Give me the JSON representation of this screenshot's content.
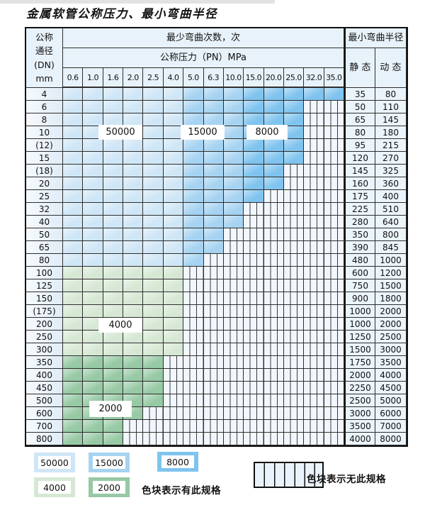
{
  "title": "金属软管公称压力、最小弯曲半径",
  "table": {
    "dn_header_lines": [
      "公称",
      "通径",
      "(DN)",
      "mm"
    ],
    "bend_cycles_header": "最少弯曲次数，次",
    "pressure_header": "公称压力（PN）MPa",
    "radius_header": "最小弯曲半径",
    "static_label": "静 态",
    "dynamic_label": "动 态",
    "pressure_columns": [
      "0.6",
      "1.0",
      "1.6",
      "2.0",
      "2.5",
      "4.0",
      "5.0",
      "6.3",
      "10.0",
      "15.0",
      "20.0",
      "25.0",
      "32.0",
      "35.0"
    ],
    "blue_row_count": 14
  },
  "zones": [
    {
      "label": "50000",
      "color": "#cfe6f6",
      "type": "blue",
      "col_start": 0,
      "col_end": 5
    },
    {
      "label": "15000",
      "color": "#a6d3f1",
      "type": "blue",
      "col_start": 6,
      "col_end": 8
    },
    {
      "label": "8000",
      "color": "#7fc3ee",
      "type": "blue",
      "col_start": 9,
      "col_end": 13
    },
    {
      "label": "4000",
      "color": "#d6e8d4",
      "type": "green",
      "row_start": 14,
      "row_end": 20
    },
    {
      "label": "2000",
      "color": "#96c9a4",
      "type": "green",
      "row_start": 21,
      "row_end": 27
    }
  ],
  "rows": [
    {
      "dn": "4",
      "colored": 14,
      "static": "35",
      "dynamic": "80"
    },
    {
      "dn": "6",
      "colored": 12,
      "static": "50",
      "dynamic": "110"
    },
    {
      "dn": "8",
      "colored": 12,
      "static": "65",
      "dynamic": "145"
    },
    {
      "dn": "10",
      "colored": 12,
      "static": "80",
      "dynamic": "180"
    },
    {
      "dn": "(12)",
      "colored": 12,
      "static": "95",
      "dynamic": "215"
    },
    {
      "dn": "15",
      "colored": 12,
      "static": "120",
      "dynamic": "270"
    },
    {
      "dn": "(18)",
      "colored": 11,
      "static": "145",
      "dynamic": "325"
    },
    {
      "dn": "20",
      "colored": 11,
      "static": "160",
      "dynamic": "360"
    },
    {
      "dn": "25",
      "colored": 10,
      "static": "175",
      "dynamic": "400"
    },
    {
      "dn": "32",
      "colored": 9,
      "static": "225",
      "dynamic": "510"
    },
    {
      "dn": "40",
      "colored": 9,
      "static": "280",
      "dynamic": "640"
    },
    {
      "dn": "50",
      "colored": 8,
      "static": "350",
      "dynamic": "800"
    },
    {
      "dn": "65",
      "colored": 8,
      "static": "390",
      "dynamic": "845"
    },
    {
      "dn": "80",
      "colored": 7,
      "static": "480",
      "dynamic": "1000"
    },
    {
      "dn": "100",
      "colored": 6,
      "static": "600",
      "dynamic": "1200"
    },
    {
      "dn": "125",
      "colored": 6,
      "static": "750",
      "dynamic": "1500"
    },
    {
      "dn": "150",
      "colored": 6,
      "static": "900",
      "dynamic": "1800"
    },
    {
      "dn": "(175)",
      "colored": 6,
      "static": "1000",
      "dynamic": "2000"
    },
    {
      "dn": "200",
      "colored": 6,
      "static": "1000",
      "dynamic": "2000"
    },
    {
      "dn": "250",
      "colored": 6,
      "static": "1250",
      "dynamic": "2500"
    },
    {
      "dn": "300",
      "colored": 6,
      "static": "1500",
      "dynamic": "3000"
    },
    {
      "dn": "350",
      "colored": 5,
      "static": "1750",
      "dynamic": "3500"
    },
    {
      "dn": "400",
      "colored": 5,
      "static": "2000",
      "dynamic": "4000"
    },
    {
      "dn": "450",
      "colored": 5,
      "static": "2250",
      "dynamic": "4500"
    },
    {
      "dn": "500",
      "colored": 5,
      "static": "2500",
      "dynamic": "5000"
    },
    {
      "dn": "600",
      "colored": 4,
      "static": "3000",
      "dynamic": "6000"
    },
    {
      "dn": "700",
      "colored": 3,
      "static": "3500",
      "dynamic": "7000"
    },
    {
      "dn": "800",
      "colored": 3,
      "static": "4000",
      "dynamic": "8000"
    }
  ],
  "legend": {
    "has_spec_text": "色块表示有此规格",
    "no_spec_text": "色块表示无此规格"
  }
}
